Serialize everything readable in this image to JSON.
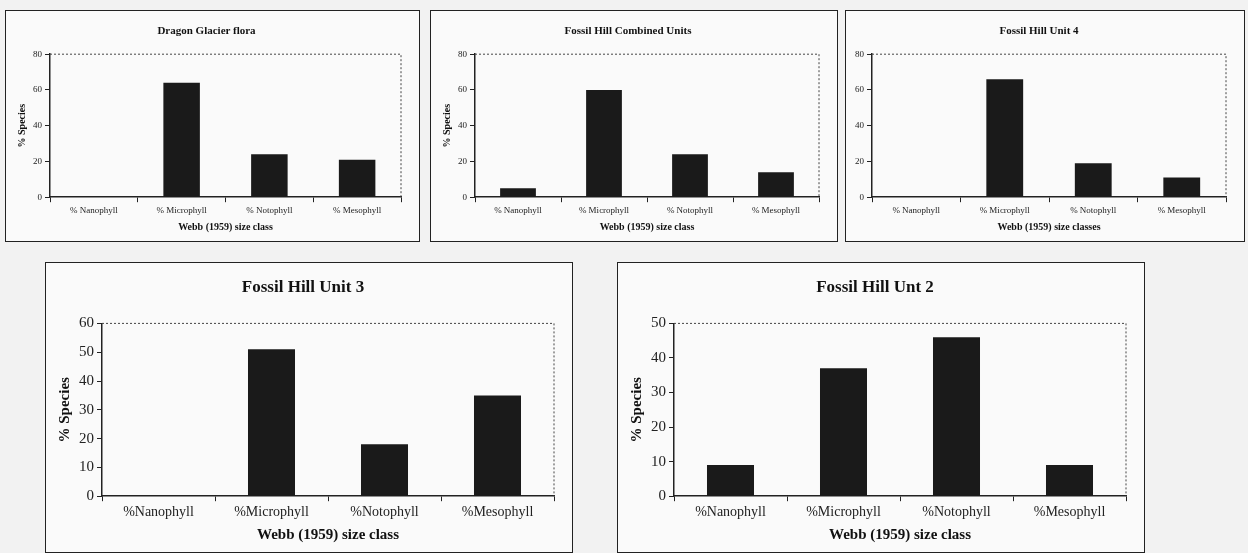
{
  "chart_data": [
    {
      "type": "bar",
      "title": "Dragon Glacier flora",
      "xlabel": "Webb (1959) size class",
      "ylabel": "% Species",
      "categories": [
        "% Nanophyll",
        "% Microphyll",
        "% Notophyll",
        "% Mesophyll"
      ],
      "values": [
        0,
        64,
        24,
        21
      ],
      "color": "#1a1a1a",
      "ylim": [
        0,
        80
      ],
      "yticks": [
        0,
        20,
        40,
        60,
        80
      ],
      "grid": false,
      "legend": false
    },
    {
      "type": "bar",
      "title": "Fossil Hill Combined Units",
      "xlabel": "Webb (1959) size class",
      "ylabel": "% Species",
      "categories": [
        "% Nanophyll",
        "% Microphyll",
        "% Notophyll",
        "% Mesophyll"
      ],
      "values": [
        5,
        60,
        24,
        14
      ],
      "color": "#1a1a1a",
      "ylim": [
        0,
        80
      ],
      "yticks": [
        0,
        20,
        40,
        60,
        80
      ],
      "grid": false,
      "legend": false
    },
    {
      "type": "bar",
      "title": "Fossil Hill Unit 4",
      "xlabel": "Webb (1959) size classes",
      "categories": [
        "% Nanophyll",
        "% Microphyll",
        "% Notophyll",
        "% Mesophyll"
      ],
      "values": [
        0,
        66,
        19,
        11
      ],
      "color": "#1a1a1a",
      "ylim": [
        0,
        80
      ],
      "yticks": [
        0,
        20,
        40,
        60,
        80
      ],
      "grid": false,
      "legend": false
    },
    {
      "type": "bar",
      "title": "Fossil Hill Unit 3",
      "xlabel": "Webb (1959) size class",
      "ylabel": "% Species",
      "categories": [
        "%Nanophyll",
        "%Microphyll",
        "%Notophyll",
        "%Mesophyll"
      ],
      "values": [
        0,
        51,
        18,
        35
      ],
      "color": "#1a1a1a",
      "ylim": [
        0,
        60
      ],
      "yticks": [
        0,
        10,
        20,
        30,
        40,
        50,
        60
      ],
      "grid": false,
      "legend": false
    },
    {
      "type": "bar",
      "title": "Fossil Hill Unt 2",
      "xlabel": "Webb (1959) size class",
      "ylabel": "% Species",
      "categories": [
        "%Nanophyll",
        "%Microphyll",
        "%Notophyll",
        "%Mesophyll"
      ],
      "values": [
        9,
        37,
        46,
        9
      ],
      "color": "#1a1a1a",
      "ylim": [
        0,
        50
      ],
      "yticks": [
        0,
        10,
        20,
        30,
        40,
        50
      ],
      "grid": false,
      "legend": false
    }
  ]
}
